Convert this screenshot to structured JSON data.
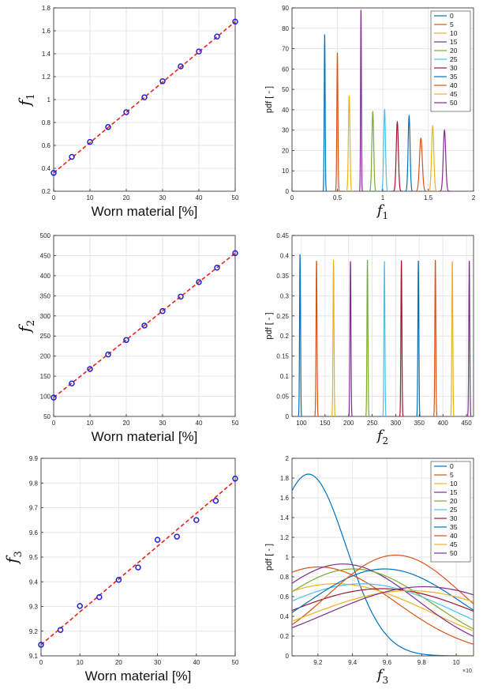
{
  "colors": {
    "axis": "#262626",
    "grid": "#e6e6e6",
    "marker": "#1f1fd6",
    "fit": "#e8231c",
    "series": [
      "#0072bd",
      "#d95319",
      "#edb120",
      "#7e2f8e",
      "#77ac30",
      "#4dbeee",
      "#a2142f",
      "#0072bd",
      "#d95319",
      "#edb120",
      "#7e2f8e"
    ]
  },
  "chart_data": [
    {
      "id": "scatter-f1",
      "type": "scatter",
      "xlabel": "Worn material [%]",
      "ylabel_main": "f",
      "ylabel_sub": "1",
      "xlim": [
        0,
        50
      ],
      "ylim": [
        0.2,
        1.8
      ],
      "xticks": [
        0,
        10,
        20,
        30,
        40,
        50
      ],
      "yticks": [
        0.2,
        0.4,
        0.6,
        0.8,
        1,
        1.2,
        1.4,
        1.6,
        1.8
      ],
      "grid": true,
      "x": [
        0,
        5,
        10,
        15,
        20,
        25,
        30,
        35,
        40,
        45,
        50
      ],
      "y": [
        0.36,
        0.5,
        0.63,
        0.76,
        0.89,
        1.02,
        1.16,
        1.29,
        1.42,
        1.55,
        1.68
      ],
      "fit": [
        [
          0,
          0.36
        ],
        [
          50,
          1.68
        ]
      ]
    },
    {
      "id": "pdf-f1",
      "type": "line",
      "xlabel_main": "f",
      "xlabel_sub": "1",
      "ylabel": "pdf [ - ]",
      "xlim": [
        0,
        2
      ],
      "ylim": [
        0,
        90
      ],
      "xticks": [
        0,
        0.5,
        1,
        1.5,
        2
      ],
      "yticks": [
        0,
        10,
        20,
        30,
        40,
        50,
        60,
        70,
        80,
        90
      ],
      "grid": true,
      "legend_position": "top-right",
      "legend": [
        "0",
        "5",
        "10",
        "15",
        "20",
        "25",
        "30",
        "35",
        "40",
        "45",
        "50"
      ],
      "series": [
        {
          "name": "0",
          "mean": 0.36,
          "peak": 77
        },
        {
          "name": "5",
          "mean": 0.5,
          "peak": 68
        },
        {
          "name": "10",
          "mean": 0.63,
          "peak": 47
        },
        {
          "name": "15",
          "mean": 0.76,
          "peak": 89
        },
        {
          "name": "20",
          "mean": 0.89,
          "peak": 39
        },
        {
          "name": "25",
          "mean": 1.02,
          "peak": 40
        },
        {
          "name": "30",
          "mean": 1.16,
          "peak": 34
        },
        {
          "name": "35",
          "mean": 1.29,
          "peak": 37
        },
        {
          "name": "40",
          "mean": 1.42,
          "peak": 26
        },
        {
          "name": "45",
          "mean": 1.55,
          "peak": 32
        },
        {
          "name": "50",
          "mean": 1.68,
          "peak": 30
        }
      ]
    },
    {
      "id": "scatter-f2",
      "type": "scatter",
      "xlabel": "Worn material [%]",
      "ylabel_main": "f",
      "ylabel_sub": "2",
      "xlim": [
        0,
        50
      ],
      "ylim": [
        50,
        500
      ],
      "xticks": [
        0,
        10,
        20,
        30,
        40,
        50
      ],
      "yticks": [
        50,
        100,
        150,
        200,
        250,
        300,
        350,
        400,
        450,
        500
      ],
      "grid": true,
      "x": [
        0,
        5,
        10,
        15,
        20,
        25,
        30,
        35,
        40,
        45,
        50
      ],
      "y": [
        97,
        132,
        168,
        204,
        240,
        276,
        312,
        348,
        384,
        420,
        456
      ],
      "fit": [
        [
          0,
          97
        ],
        [
          50,
          456
        ]
      ]
    },
    {
      "id": "pdf-f2",
      "type": "line",
      "xlabel_main": "f",
      "xlabel_sub": "2",
      "ylabel": "pdf [ - ]",
      "xlim": [
        80,
        465
      ],
      "ylim": [
        0,
        0.45
      ],
      "xticks": [
        100,
        150,
        200,
        250,
        300,
        350,
        400,
        450
      ],
      "yticks": [
        0,
        0.05,
        0.1,
        0.15,
        0.2,
        0.25,
        0.3,
        0.35,
        0.4,
        0.45
      ],
      "grid": true,
      "series": [
        {
          "name": "0",
          "mean": 97,
          "peak": 0.403
        },
        {
          "name": "5",
          "mean": 132,
          "peak": 0.387
        },
        {
          "name": "10",
          "mean": 168,
          "peak": 0.389
        },
        {
          "name": "15",
          "mean": 204,
          "peak": 0.386
        },
        {
          "name": "20",
          "mean": 240,
          "peak": 0.389
        },
        {
          "name": "25",
          "mean": 276,
          "peak": 0.386
        },
        {
          "name": "30",
          "mean": 312,
          "peak": 0.388
        },
        {
          "name": "35",
          "mean": 348,
          "peak": 0.387
        },
        {
          "name": "40",
          "mean": 384,
          "peak": 0.389
        },
        {
          "name": "45",
          "mean": 420,
          "peak": 0.386
        },
        {
          "name": "50",
          "mean": 456,
          "peak": 0.387
        }
      ]
    },
    {
      "id": "scatter-f3",
      "type": "scatter",
      "xlabel": "Worn material [%]",
      "ylabel_main": "f",
      "ylabel_sub": "3",
      "xlim": [
        0,
        50
      ],
      "ylim": [
        9.1,
        9.9
      ],
      "xticks": [
        0,
        10,
        20,
        30,
        40,
        50
      ],
      "yticks": [
        9.1,
        9.2,
        9.3,
        9.4,
        9.5,
        9.6,
        9.7,
        9.8,
        9.9
      ],
      "grid": true,
      "x": [
        0,
        5,
        10,
        15,
        20,
        25,
        30,
        35,
        40,
        45,
        50
      ],
      "y": [
        9.145,
        9.205,
        9.302,
        9.338,
        9.408,
        9.458,
        9.57,
        9.583,
        9.65,
        9.728,
        9.818
      ],
      "fit": [
        [
          0,
          9.145
        ],
        [
          50,
          9.81
        ]
      ]
    },
    {
      "id": "pdf-f3",
      "type": "line",
      "xlabel_main": "f",
      "xlabel_sub": "3",
      "ylabel": "pdf [ - ]",
      "xlim": [
        9.05,
        10.1
      ],
      "ylim": [
        0,
        2
      ],
      "xticks": [
        9.2,
        9.4,
        9.6,
        9.8,
        10
      ],
      "yticks": [
        0,
        0.2,
        0.4,
        0.6,
        0.8,
        1,
        1.2,
        1.4,
        1.6,
        1.8,
        2
      ],
      "xscale_label": "×10",
      "grid": true,
      "legend_position": "top-right",
      "legend": [
        "0",
        "5",
        "10",
        "15",
        "20",
        "25",
        "30",
        "35",
        "40",
        "45",
        "50"
      ],
      "series": [
        {
          "name": "0",
          "mean": 9.145,
          "peak": 1.84
        },
        {
          "name": "5",
          "mean": 9.205,
          "peak": 0.9
        },
        {
          "name": "10",
          "mean": 9.305,
          "peak": 0.73
        },
        {
          "name": "15",
          "mean": 9.345,
          "peak": 0.93
        },
        {
          "name": "20",
          "mean": 9.405,
          "peak": 0.88
        },
        {
          "name": "25",
          "mean": 9.455,
          "peak": 0.73
        },
        {
          "name": "30",
          "mean": 9.57,
          "peak": 0.68
        },
        {
          "name": "35",
          "mean": 9.585,
          "peak": 0.88
        },
        {
          "name": "40",
          "mean": 9.65,
          "peak": 1.02
        },
        {
          "name": "45",
          "mean": 9.73,
          "peak": 0.66
        },
        {
          "name": "50",
          "mean": 9.815,
          "peak": 0.7
        }
      ]
    }
  ]
}
